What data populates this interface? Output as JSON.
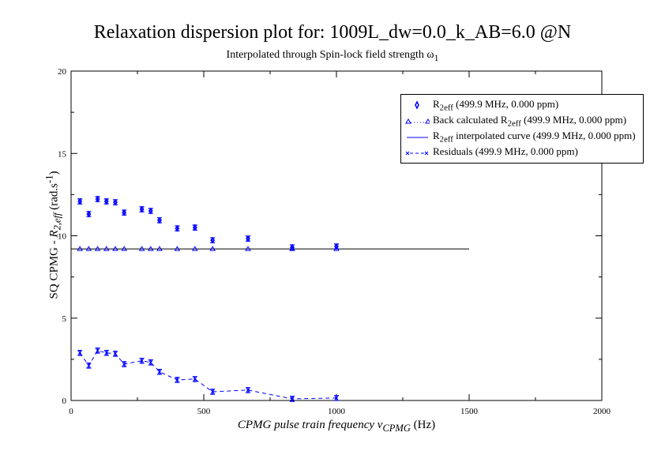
{
  "chart_data": {
    "type": "scatter",
    "title": "Relaxation dispersion plot for: 1009L_dw=0.0_k_AB=6.0 @N",
    "subtitle": "Interpolated through Spin-lock field strength ω1",
    "xlabel": "CPMG pulse train frequency νCPMG (Hz)",
    "ylabel": "SQ CPMG - R2,eff (rad.s-1)",
    "xlim": [
      0,
      2000
    ],
    "ylim": [
      0,
      20
    ],
    "xticks": [
      "0",
      "500",
      "1000",
      "1500",
      "2000"
    ],
    "yticks": [
      "0",
      "5",
      "10",
      "15",
      "20"
    ],
    "legend_position": "top-right",
    "x": [
      33.3,
      66.7,
      100,
      133.3,
      166.7,
      200,
      266.7,
      300,
      333.3,
      400,
      466.7,
      533.3,
      666.7,
      833.3,
      1000
    ],
    "series": [
      {
        "name": "R2eff (499.9 MHz, 0.000 ppm)",
        "style": "diamond-errorbar",
        "color": "#0000ff",
        "values": [
          12.09,
          11.32,
          12.23,
          12.09,
          12.04,
          11.41,
          11.61,
          11.51,
          10.94,
          10.45,
          10.5,
          9.73,
          9.83,
          9.3,
          9.35
        ],
        "error": 0.15
      },
      {
        "name": "Back calculated R2eff (499.9 MHz, 0.000 ppm)",
        "style": "triangle",
        "color": "#0000ff",
        "values": [
          9.2,
          9.2,
          9.2,
          9.2,
          9.2,
          9.2,
          9.2,
          9.2,
          9.2,
          9.2,
          9.2,
          9.2,
          9.2,
          9.2,
          9.2
        ]
      },
      {
        "name": "R2eff interpolated curve (499.9 MHz, 0.000 ppm)",
        "style": "line",
        "color": "#000000",
        "x": [
          0,
          1500
        ],
        "values": [
          9.2,
          9.2
        ]
      },
      {
        "name": "Residuals (499.9 MHz, 0.000 ppm)",
        "style": "x-dashed-errorbar",
        "color": "#0000ff",
        "values": [
          2.89,
          2.12,
          3.03,
          2.89,
          2.84,
          2.21,
          2.41,
          2.31,
          1.74,
          1.25,
          1.3,
          0.53,
          0.63,
          0.1,
          0.15
        ],
        "error": 0.15
      }
    ]
  },
  "labels": {
    "title": "Relaxation dispersion plot for: 1009L_dw=0.0_k_AB=6.0 @N",
    "subtitle_pre": "Interpolated through Spin-lock field strength ω",
    "subtitle_sub": "1",
    "xlabel_pre": "CPMG pulse train frequency ν",
    "xlabel_sub": "CPMG",
    "xlabel_post": " (Hz)",
    "ylabel_pre": "SQ CPMG - ",
    "ylabel_r": "R",
    "ylabel_sub": "2,eff",
    "ylabel_post": " (rad.s",
    "ylabel_sup": "-1",
    "ylabel_end": ")",
    "legend": [
      {
        "pre": "R",
        "sub": "2eff",
        "post": " (499.9 MHz, 0.000 ppm)"
      },
      {
        "pre": "Back calculated R",
        "sub": "2eff",
        "post": " (499.9 MHz, 0.000 ppm)"
      },
      {
        "pre": "R",
        "sub": "2eff",
        "post": " interpolated curve (499.9 MHz, 0.000 ppm)"
      },
      {
        "pre": "Residuals (499.9 MHz, 0.000 ppm)",
        "sub": "",
        "post": ""
      }
    ]
  }
}
